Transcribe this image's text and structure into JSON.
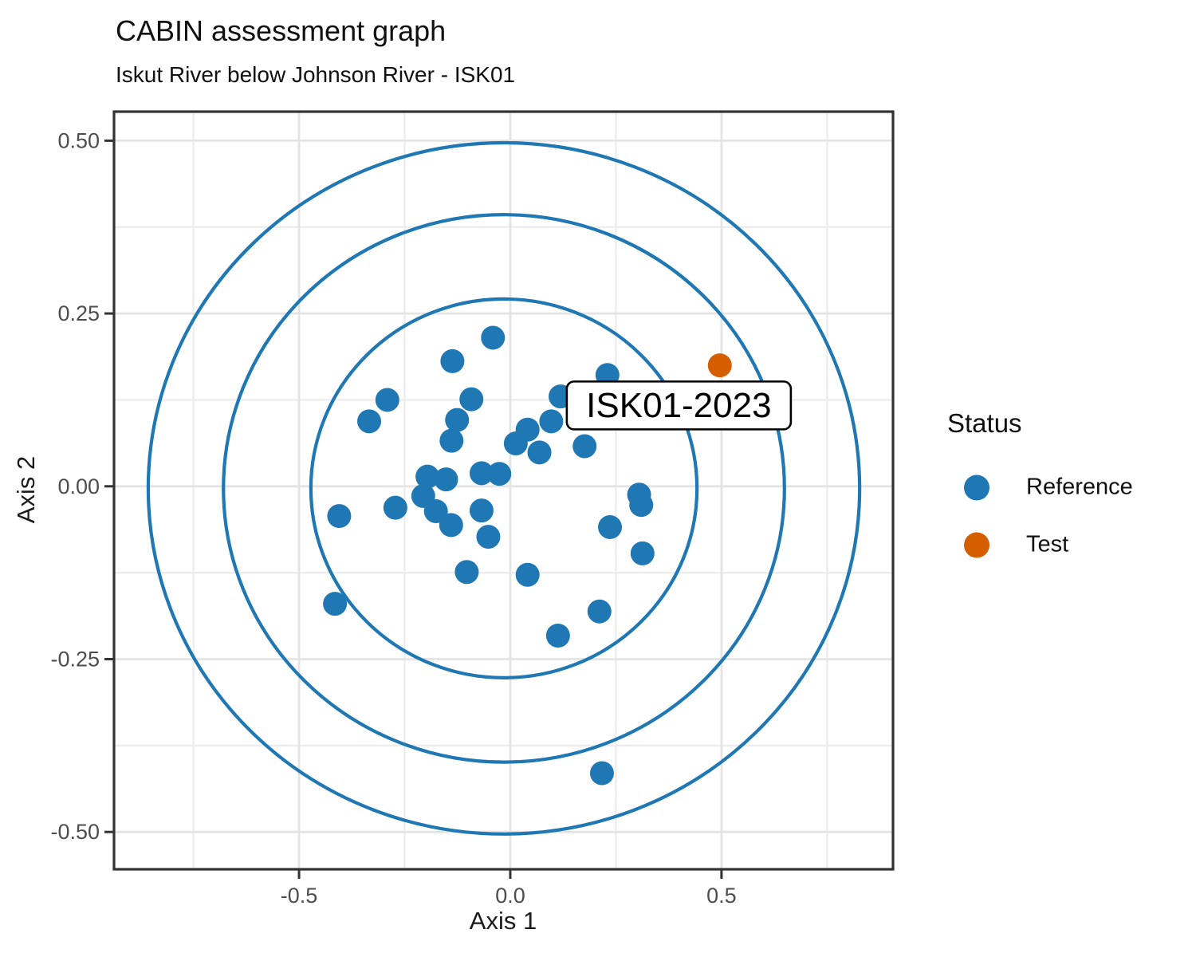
{
  "title": "CABIN assessment graph",
  "subtitle": "Iskut River below Johnson River - ISK01",
  "legend": {
    "title": "Status",
    "items": [
      {
        "label": "Reference",
        "color": "#1f78b4"
      },
      {
        "label": "Test",
        "color": "#d55e00"
      }
    ]
  },
  "chart_data": {
    "type": "scatter",
    "title": "CABIN assessment graph",
    "subtitle": "Iskut River below Johnson River - ISK01",
    "xlabel": "Axis 1",
    "ylabel": "Axis 2",
    "xlim": [
      -0.938,
      0.906
    ],
    "ylim": [
      -0.554,
      0.542
    ],
    "grid": "on",
    "legend_position": "right",
    "x_ticks": [
      {
        "value": -0.5,
        "label": "-0.5"
      },
      {
        "value": 0.0,
        "label": "0.0"
      },
      {
        "value": 0.5,
        "label": "0.5"
      }
    ],
    "y_ticks": [
      {
        "value": 0.5,
        "label": "0.50"
      },
      {
        "value": 0.25,
        "label": "0.25"
      },
      {
        "value": 0.0,
        "label": "0.00"
      },
      {
        "value": -0.25,
        "label": "-0.25"
      },
      {
        "value": -0.5,
        "label": "-0.50"
      }
    ],
    "x_minor": [
      -0.75,
      -0.25,
      0.25,
      0.75
    ],
    "y_minor": [
      -0.375,
      -0.125,
      0.125,
      0.375
    ],
    "series": [
      {
        "name": "Reference",
        "color": "#1f78b4",
        "points": [
          [
            -0.041,
            0.215
          ],
          [
            -0.137,
            0.181
          ],
          [
            -0.291,
            0.125
          ],
          [
            -0.334,
            0.094
          ],
          [
            -0.092,
            0.126
          ],
          [
            -0.126,
            0.096
          ],
          [
            -0.139,
            0.066
          ],
          [
            0.23,
            0.161
          ],
          [
            0.119,
            0.13
          ],
          [
            0.097,
            0.094
          ],
          [
            0.041,
            0.082
          ],
          [
            0.013,
            0.062
          ],
          [
            0.069,
            0.049
          ],
          [
            0.176,
            0.058
          ],
          [
            -0.068,
            0.019
          ],
          [
            -0.026,
            0.018
          ],
          [
            -0.196,
            0.014
          ],
          [
            -0.152,
            0.01
          ],
          [
            -0.206,
            -0.014
          ],
          [
            -0.176,
            -0.036
          ],
          [
            -0.272,
            -0.031
          ],
          [
            -0.405,
            -0.043
          ],
          [
            -0.14,
            -0.056
          ],
          [
            -0.068,
            -0.035
          ],
          [
            -0.052,
            -0.073
          ],
          [
            -0.103,
            -0.124
          ],
          [
            0.041,
            -0.128
          ],
          [
            0.305,
            -0.012
          ],
          [
            0.31,
            -0.027
          ],
          [
            0.236,
            -0.059
          ],
          [
            0.313,
            -0.097
          ],
          [
            0.211,
            -0.181
          ],
          [
            0.113,
            -0.216
          ],
          [
            -0.415,
            -0.17
          ],
          [
            0.217,
            -0.415
          ]
        ]
      },
      {
        "name": "Test",
        "color": "#d55e00",
        "points": [
          [
            0.496,
            0.175
          ]
        ]
      }
    ],
    "ellipses": {
      "comment_visible_only": "three concentric confidence ellipses",
      "center": [
        -0.015,
        -0.003
      ],
      "rx": [
        0.457,
        0.664,
        0.842
      ],
      "ry": [
        0.274,
        0.396,
        0.5
      ],
      "color": "#1f78b4"
    },
    "annotation": {
      "text": "ISK01-2023",
      "x": 0.399,
      "y": 0.117
    }
  }
}
